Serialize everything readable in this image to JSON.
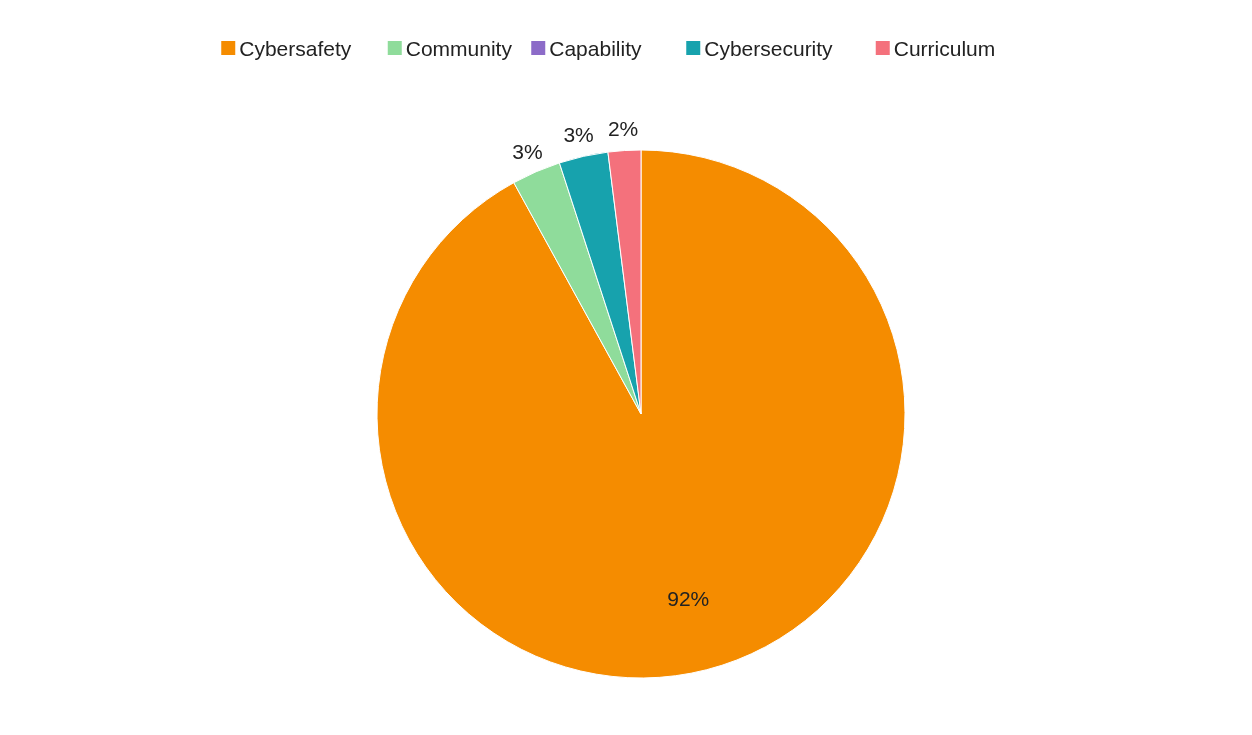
{
  "chart_data": {
    "type": "pie",
    "categories": [
      "Cybersafety",
      "Community",
      "Capability",
      "Cybersecurity",
      "Curriculum"
    ],
    "values": [
      92,
      3,
      0,
      3,
      2
    ],
    "colors": [
      "#f58c00",
      "#8fdc9b",
      "#8c6bc8",
      "#17a2ad",
      "#f4717c"
    ],
    "value_labels": [
      "92%",
      "3%",
      null,
      "3%",
      "2%"
    ],
    "legend": "top"
  }
}
